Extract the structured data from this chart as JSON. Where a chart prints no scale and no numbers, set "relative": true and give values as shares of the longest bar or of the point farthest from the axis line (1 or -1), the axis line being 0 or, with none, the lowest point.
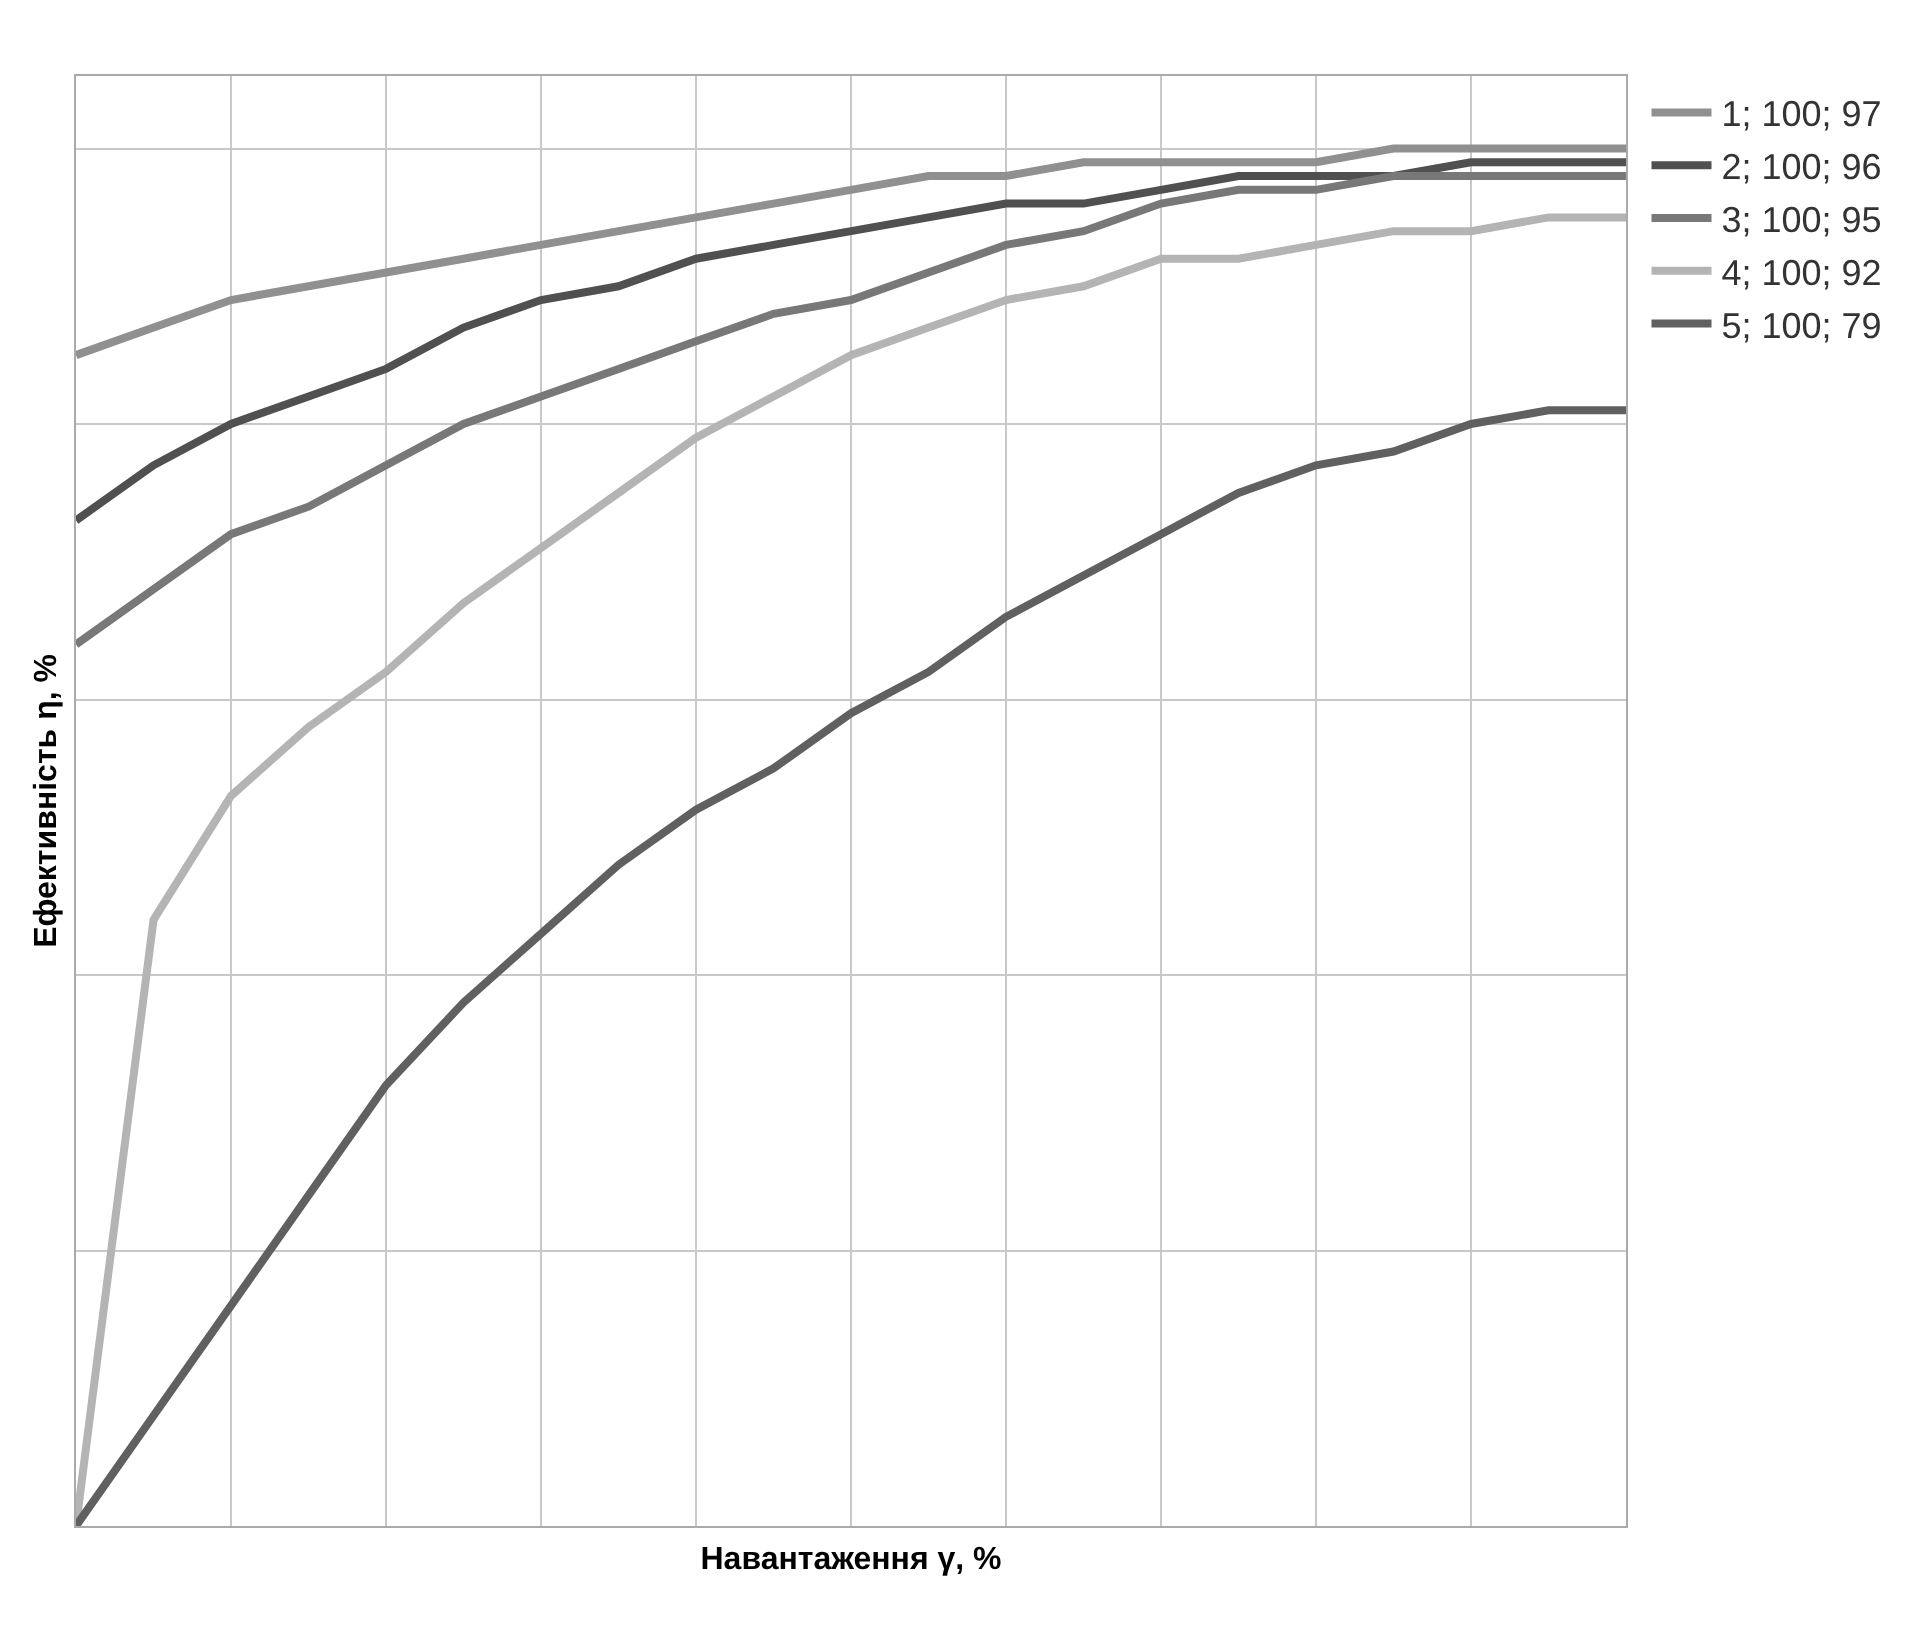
{
  "chart_data": {
    "type": "line",
    "relative": true,
    "xlabel": "Навантаження γ, %",
    "ylabel": "Ефективність η, %",
    "grid": true,
    "legend": "top right",
    "line_style": "solid",
    "marker": "none",
    "categories": [
      null,
      null,
      null,
      null,
      null,
      null,
      null,
      null,
      null,
      null,
      null,
      null,
      null,
      null,
      null,
      null,
      null,
      null,
      null,
      null,
      null
    ],
    "series": [
      {
        "name": "1; 100; 97",
        "color": "#909090",
        "values": [
          0.85,
          0.87,
          0.89,
          0.9,
          0.91,
          0.92,
          0.93,
          0.94,
          0.95,
          0.96,
          0.97,
          0.98,
          0.98,
          0.99,
          0.99,
          0.99,
          0.99,
          1.0,
          1.0,
          1.0,
          1.0
        ]
      },
      {
        "name": "2; 100; 96",
        "color": "#505050",
        "values": [
          0.73,
          0.77,
          0.8,
          0.82,
          0.84,
          0.87,
          0.89,
          0.9,
          0.92,
          0.93,
          0.94,
          0.95,
          0.96,
          0.96,
          0.97,
          0.98,
          0.98,
          0.98,
          0.99,
          0.99,
          0.99
        ]
      },
      {
        "name": "3; 100; 95",
        "color": "#787878",
        "values": [
          0.64,
          0.68,
          0.72,
          0.74,
          0.77,
          0.8,
          0.82,
          0.84,
          0.86,
          0.88,
          0.89,
          0.91,
          0.93,
          0.94,
          0.96,
          0.97,
          0.97,
          0.98,
          0.98,
          0.98,
          0.98
        ]
      },
      {
        "name": "4; 100; 92",
        "color": "#b4b4b4",
        "values": [
          0,
          0.44,
          0.53,
          0.58,
          0.62,
          0.67,
          0.71,
          0.75,
          0.79,
          0.82,
          0.85,
          0.87,
          0.89,
          0.9,
          0.92,
          0.92,
          0.93,
          0.94,
          0.94,
          0.95,
          0.95
        ]
      },
      {
        "name": "5; 100; 79",
        "color": "#606060",
        "values": [
          0,
          0.08,
          0.16,
          0.24,
          0.32,
          0.38,
          0.43,
          0.48,
          0.52,
          0.55,
          0.59,
          0.62,
          0.66,
          0.69,
          0.72,
          0.75,
          0.77,
          0.78,
          0.8,
          0.81,
          0.81
        ]
      }
    ]
  }
}
